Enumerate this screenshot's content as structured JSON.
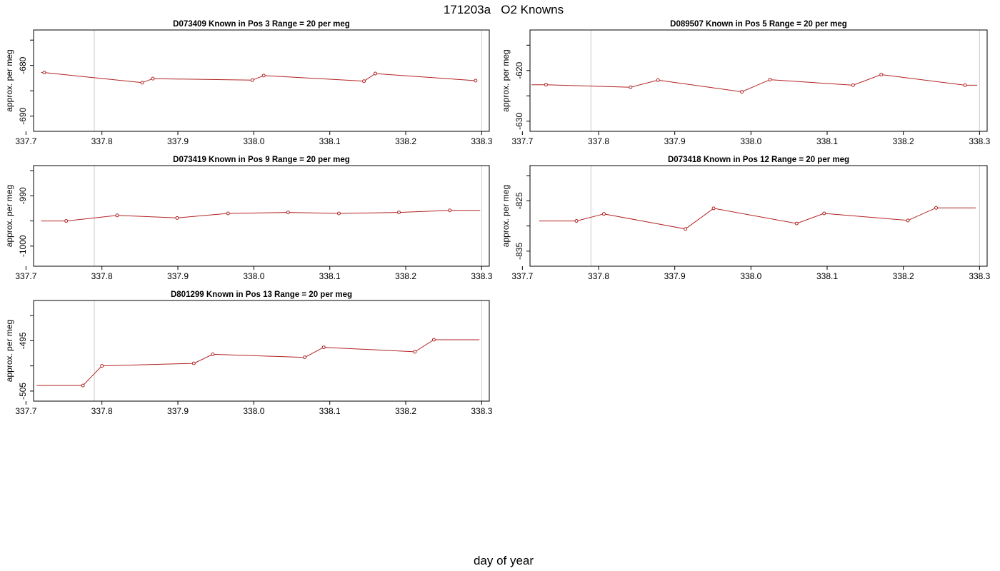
{
  "title": "171203a   O2 Knowns",
  "xlabel": "day of year",
  "chart_data": [
    {
      "type": "line",
      "title": "D073409    Known in Pos 3          Range = 20 per meg",
      "ylabel": "approx. per meg",
      "xlim": [
        337.71,
        338.31
      ],
      "ylim": [
        -693,
        -673
      ],
      "xticks": [
        337.7,
        337.8,
        337.9,
        338.0,
        338.1,
        338.2,
        338.3
      ],
      "xtick_labels": [
        "337.7",
        "337.8",
        "337.9",
        "338.0",
        "338.1",
        "338.2",
        "338.3"
      ],
      "yticks": [
        -680,
        -690
      ],
      "ytick_labels": [
        "-680",
        "-690"
      ],
      "vlines": [
        337.79,
        338.3
      ],
      "x": [
        337.72,
        337.724,
        337.853,
        337.867,
        337.998,
        338.013,
        338.145,
        338.16,
        338.292,
        338.294
      ],
      "y": [
        -681.4,
        -681.4,
        -683.4,
        -682.6,
        -682.9,
        -682.0,
        -683.1,
        -681.6,
        -683.0,
        -683.0
      ],
      "markers": [
        false,
        true,
        true,
        true,
        true,
        true,
        true,
        true,
        true,
        false
      ]
    },
    {
      "type": "line",
      "title": "D089507    Known in Pos 5          Range = 20 per meg",
      "ylabel": "approx. per meg",
      "xlim": [
        337.71,
        338.31
      ],
      "ylim": [
        -632,
        -612
      ],
      "xticks": [
        337.7,
        337.8,
        337.9,
        338.0,
        338.1,
        338.2,
        338.3
      ],
      "xtick_labels": [
        "337.7",
        "337.8",
        "337.9",
        "338.0",
        "338.1",
        "338.2",
        "338.3"
      ],
      "yticks": [
        -620,
        -630
      ],
      "ytick_labels": [
        "-620",
        "-630"
      ],
      "vlines": [
        337.79,
        338.3
      ],
      "x": [
        337.712,
        337.731,
        337.842,
        337.878,
        337.988,
        338.025,
        338.134,
        338.171,
        338.281,
        338.297
      ],
      "y": [
        -622.8,
        -622.8,
        -623.3,
        -621.9,
        -624.2,
        -621.8,
        -622.9,
        -620.8,
        -622.9,
        -622.9
      ],
      "markers": [
        false,
        true,
        true,
        true,
        true,
        true,
        true,
        true,
        true,
        false
      ]
    },
    {
      "type": "line",
      "title": "D073419    Known in Pos 9          Range = 20 per meg",
      "ylabel": "approx. per meg",
      "xlim": [
        337.71,
        338.31
      ],
      "ylim": [
        -1004,
        -984
      ],
      "xticks": [
        337.7,
        337.8,
        337.9,
        338.0,
        338.1,
        338.2,
        338.3
      ],
      "xtick_labels": [
        "337.7",
        "337.8",
        "337.9",
        "338.0",
        "338.1",
        "338.2",
        "338.3"
      ],
      "yticks": [
        -990,
        -1000
      ],
      "ytick_labels": [
        "-990",
        "-1000"
      ],
      "vlines": [
        337.79,
        338.3
      ],
      "x": [
        337.72,
        337.753,
        337.82,
        337.899,
        337.966,
        338.045,
        338.112,
        338.191,
        338.258,
        338.298
      ],
      "y": [
        -995.0,
        -995.0,
        -993.9,
        -994.4,
        -993.5,
        -993.3,
        -993.5,
        -993.3,
        -992.9,
        -992.9
      ],
      "markers": [
        false,
        true,
        true,
        true,
        true,
        true,
        true,
        true,
        true,
        false
      ]
    },
    {
      "type": "line",
      "title": "D073418    Known in Pos 12          Range = 20 per meg",
      "ylabel": "approx. per meg",
      "xlim": [
        337.71,
        338.31
      ],
      "ylim": [
        -838,
        -818
      ],
      "xticks": [
        337.7,
        337.8,
        337.9,
        338.0,
        338.1,
        338.2,
        338.3
      ],
      "xtick_labels": [
        "337.7",
        "337.8",
        "337.9",
        "338.0",
        "338.1",
        "338.2",
        "338.3"
      ],
      "yticks": [
        -825,
        -835
      ],
      "ytick_labels": [
        "-825",
        "-835"
      ],
      "vlines": [
        337.79,
        338.3
      ],
      "x": [
        337.722,
        337.771,
        337.807,
        337.914,
        337.951,
        338.06,
        338.096,
        338.206,
        338.243,
        338.295
      ],
      "y": [
        -829.0,
        -829.0,
        -827.6,
        -830.6,
        -826.5,
        -829.5,
        -827.5,
        -828.9,
        -826.4,
        -826.4
      ],
      "markers": [
        false,
        true,
        true,
        true,
        true,
        true,
        true,
        true,
        true,
        false
      ]
    },
    {
      "type": "line",
      "title": "D801299    Known in Pos 13          Range = 20 per meg",
      "ylabel": "approx. per meg",
      "xlim": [
        337.71,
        338.31
      ],
      "ylim": [
        -507,
        -487
      ],
      "xticks": [
        337.7,
        337.8,
        337.9,
        338.0,
        338.1,
        338.2,
        338.3
      ],
      "xtick_labels": [
        "337.7",
        "337.8",
        "337.9",
        "338.0",
        "338.1",
        "338.2",
        "338.3"
      ],
      "yticks": [
        -495,
        -505
      ],
      "ytick_labels": [
        "-495",
        "-505"
      ],
      "vlines": [
        337.79,
        338.3
      ],
      "x": [
        337.714,
        337.775,
        337.8,
        337.921,
        337.946,
        338.067,
        338.092,
        338.212,
        338.237,
        338.297
      ],
      "y": [
        -503.9,
        -503.9,
        -500.0,
        -499.5,
        -497.7,
        -498.3,
        -496.3,
        -497.2,
        -494.8,
        -494.8
      ],
      "markers": [
        false,
        true,
        true,
        true,
        true,
        true,
        true,
        true,
        true,
        false
      ]
    }
  ],
  "colors": {
    "series": "#b22222",
    "vline": "#cccccc",
    "axis": "#000000"
  }
}
